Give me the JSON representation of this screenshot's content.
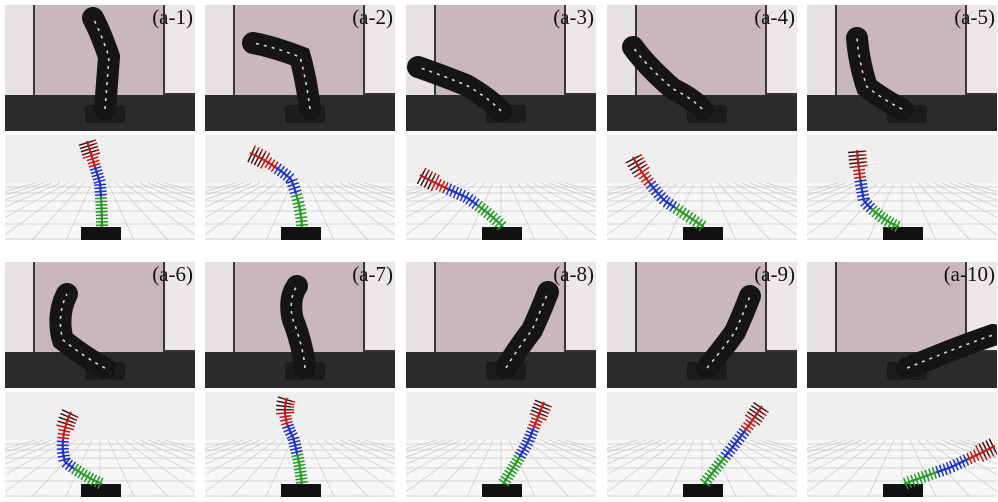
{
  "panels": [
    {
      "label": "(a-1)"
    },
    {
      "label": "(a-2)"
    },
    {
      "label": "(a-3)"
    },
    {
      "label": "(a-4)"
    },
    {
      "label": "(a-5)"
    },
    {
      "label": "(a-6)"
    },
    {
      "label": "(a-7)"
    },
    {
      "label": "(a-8)"
    },
    {
      "label": "(a-9)"
    },
    {
      "label": "(a-10)"
    }
  ],
  "colors": {
    "wall": "#c9b7bd",
    "floor": "#2b2b2d",
    "robot": "#151515",
    "segment_base": "#1f9b1f",
    "segment_middle": "#1a2fc9",
    "segment_top": "#c41717",
    "sim_background": "#efefef",
    "grid": "#c9c9c9"
  }
}
